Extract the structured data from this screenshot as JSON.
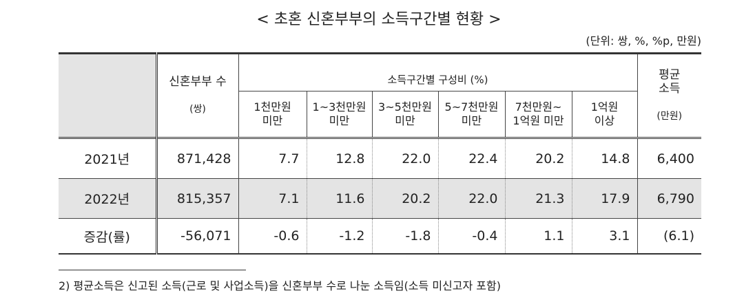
{
  "header": {
    "title": "< 초혼 신혼부부의 소득구간별 현황 >",
    "unit": "(단위: 쌍, %, %p, 만원)"
  },
  "table": {
    "columns": {
      "count": "신혼부부 수",
      "count_unit": "(쌍)",
      "group": "소득구간별 구성비 (%)",
      "bands": [
        "1천만원\n미만",
        "1~3천만원\n미만",
        "3~5천만원\n미만",
        "5~7천만원\n미만",
        "7천만원~\n1억원 미만",
        "1억원\n이상"
      ],
      "avg": "평균\n소득",
      "avg_unit": "(만원)"
    },
    "rows": [
      [
        "2021년",
        "871,428",
        "7.7",
        "12.8",
        "22.0",
        "22.4",
        "20.2",
        "14.8",
        "6,400"
      ],
      [
        "2022년",
        "815,357",
        "7.1",
        "11.6",
        "20.2",
        "22.0",
        "21.3",
        "17.9",
        "6,790"
      ],
      [
        "증감(률)",
        "-56,071",
        "-0.6",
        "-1.2",
        "-1.8",
        "-0.4",
        "1.1",
        "3.1",
        "(6.1)"
      ]
    ]
  },
  "footnote": "2) 평균소득은 신고된 소득(근로 및 사업소득)을 신혼부부 수로 나눈 소득임(소득 미신고자 포함)"
}
